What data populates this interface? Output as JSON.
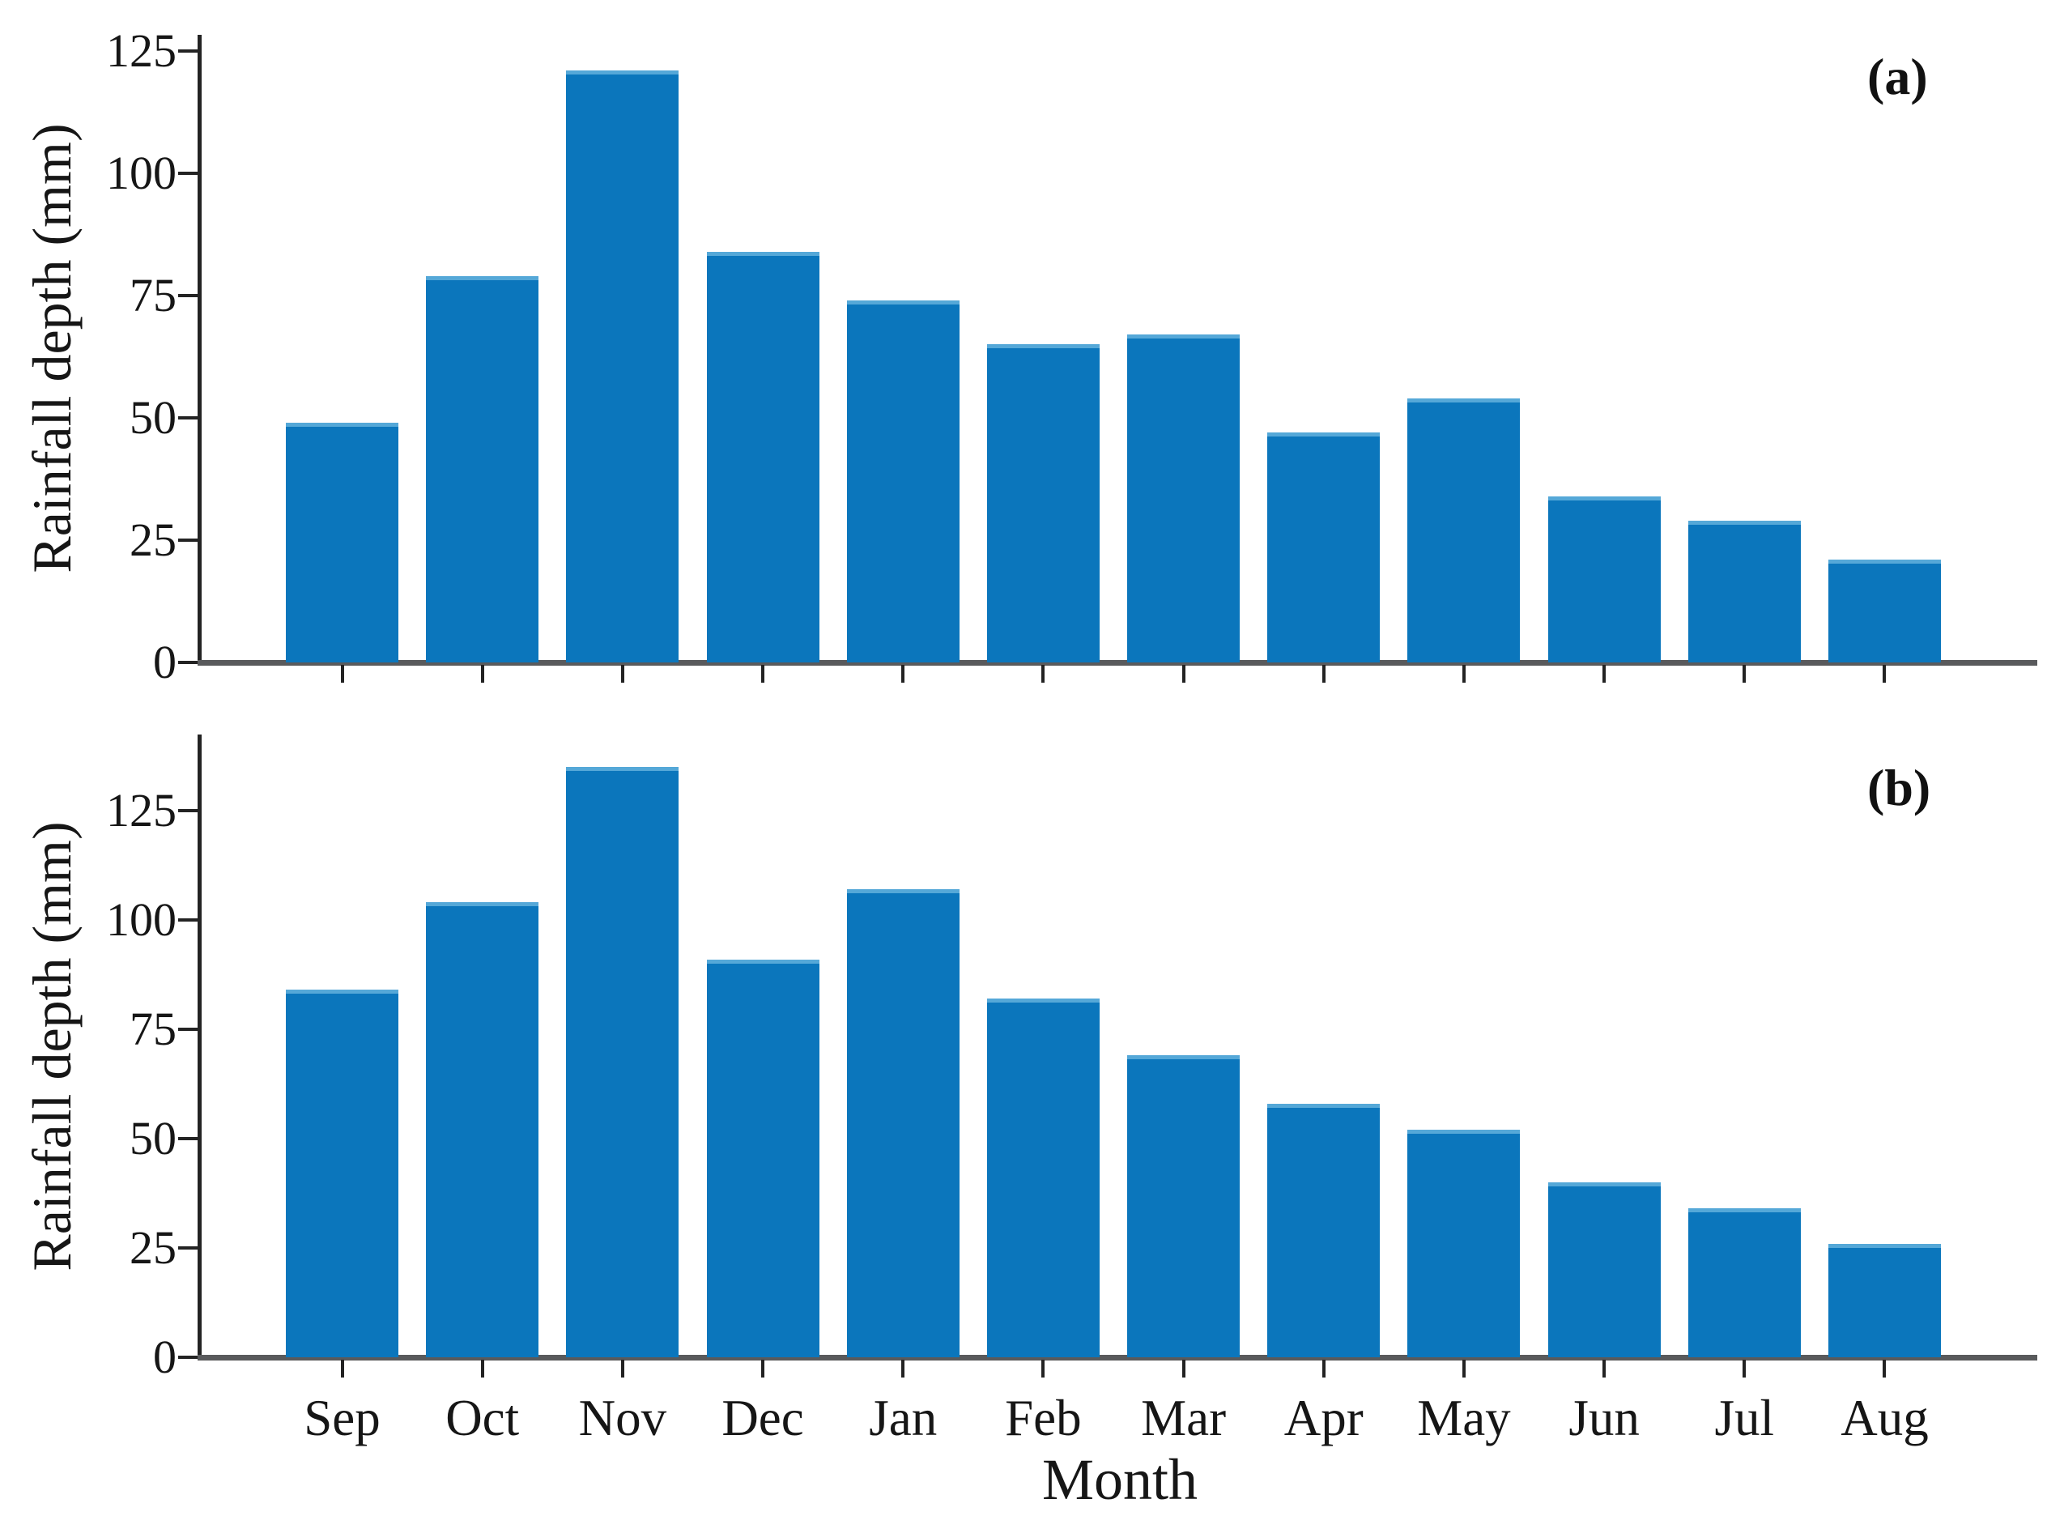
{
  "figure_type": "two-panel monthly rainfall bar chart",
  "colors": {
    "bar": "#0b76bc",
    "bar_top_edge": "#55a8d8",
    "x_axis_line": "#595a5c",
    "y_axis_line": "#232323",
    "text": "#161616"
  },
  "chart_data": [
    {
      "type": "bar",
      "panel_label": "(a)",
      "title": "",
      "xlabel": "",
      "ylabel": "Rainfall depth (mm)",
      "categories": [
        "Sep",
        "Oct",
        "Nov",
        "Dec",
        "Jan",
        "Feb",
        "Mar",
        "Apr",
        "May",
        "Jun",
        "Jul",
        "Aug"
      ],
      "values": [
        49,
        79,
        121,
        84,
        74,
        65,
        67,
        47,
        54,
        34,
        29,
        21
      ],
      "yticks": [
        0,
        25,
        50,
        75,
        100,
        125
      ],
      "ylim": [
        0,
        128.3
      ],
      "grid": false,
      "legend": "none",
      "show_x_tick_labels": false
    },
    {
      "type": "bar",
      "panel_label": "(b)",
      "title": "",
      "xlabel": "Month",
      "ylabel": "Rainfall depth (mm)",
      "categories": [
        "Sep",
        "Oct",
        "Nov",
        "Dec",
        "Jan",
        "Feb",
        "Mar",
        "Apr",
        "May",
        "Jun",
        "Jul",
        "Aug"
      ],
      "values": [
        84,
        104,
        135,
        91,
        107,
        82,
        69,
        58,
        52,
        40,
        34,
        26
      ],
      "yticks": [
        0,
        25,
        50,
        75,
        100,
        125
      ],
      "ylim": [
        0,
        142.4
      ],
      "grid": false,
      "legend": "none",
      "show_x_tick_labels": true
    }
  ]
}
